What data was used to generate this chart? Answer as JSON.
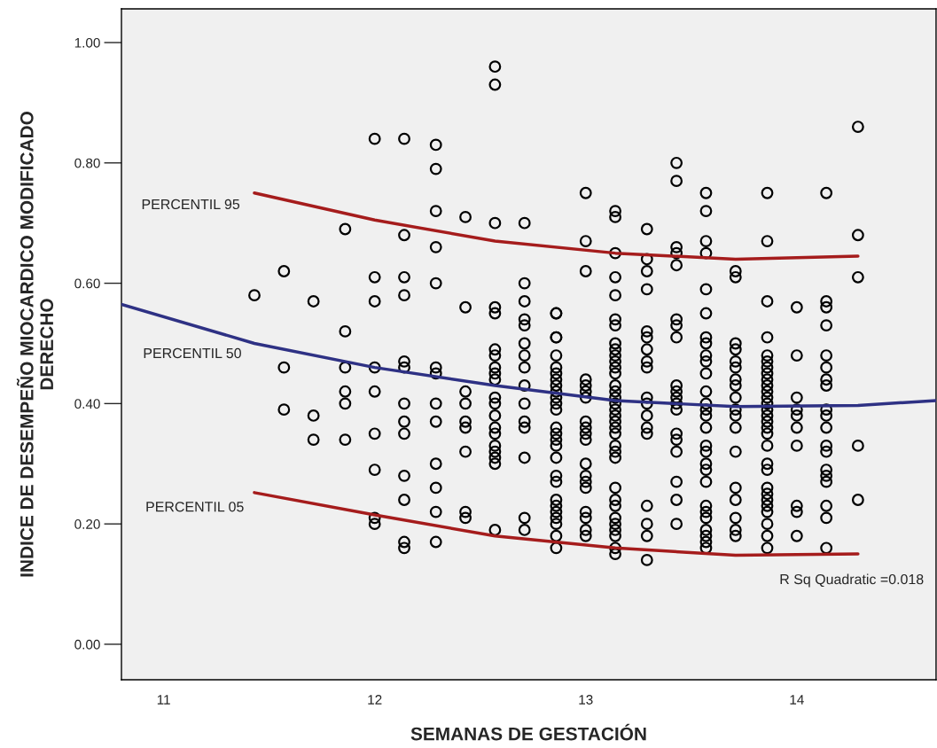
{
  "chart_data": {
    "type": "scatter",
    "xlabel": "SEMANAS DE GESTACIÓN",
    "ylabel": "INDICE DE DESEMPEÑO MIOCARDICO MODIFICADO\nDERECHO",
    "xlim": [
      10.8,
      14.66
    ],
    "xticks": [
      11,
      12,
      13,
      14
    ],
    "ylim": [
      -0.059,
      1.056
    ],
    "yticks": [
      {
        "value": 0,
        "label": "0.00"
      },
      {
        "value": 0.2,
        "label": "0.20"
      },
      {
        "value": 0.4,
        "label": "0.40"
      },
      {
        "value": 0.6,
        "label": "0.60"
      },
      {
        "value": 0.8,
        "label": "0.80"
      },
      {
        "value": 1.0,
        "label": "1.00"
      }
    ],
    "grid": false,
    "legend": false,
    "series": [
      {
        "color": "#000000",
        "marker": "circle",
        "x": [
          11.43,
          11.57,
          11.57,
          11.57,
          11.71,
          11.71,
          11.71,
          11.86,
          11.86,
          11.86,
          11.86,
          11.86,
          11.86,
          12.0,
          12.0,
          12.0,
          12.0,
          12.0,
          12.0,
          12.0,
          12.0,
          12.0,
          12.14,
          12.14,
          12.14,
          12.14,
          12.14,
          12.14,
          12.14,
          12.14,
          12.14,
          12.14,
          12.14,
          12.14,
          12.14,
          12.29,
          12.29,
          12.29,
          12.29,
          12.29,
          12.29,
          12.29,
          12.29,
          12.29,
          12.29,
          12.29,
          12.29,
          12.29,
          12.43,
          12.43,
          12.43,
          12.43,
          12.43,
          12.43,
          12.43,
          12.43,
          12.43,
          12.57,
          12.57,
          12.57,
          12.57,
          12.57,
          12.57,
          12.57,
          12.57,
          12.57,
          12.57,
          12.57,
          12.57,
          12.57,
          12.57,
          12.57,
          12.57,
          12.57,
          12.57,
          12.57,
          12.57,
          12.71,
          12.71,
          12.71,
          12.71,
          12.71,
          12.71,
          12.71,
          12.71,
          12.71,
          12.71,
          12.71,
          12.71,
          12.71,
          12.71,
          12.71,
          12.86,
          12.86,
          12.86,
          12.86,
          12.86,
          12.86,
          12.86,
          12.86,
          12.86,
          12.86,
          12.86,
          12.86,
          12.86,
          12.86,
          12.86,
          12.86,
          12.86,
          12.86,
          12.86,
          12.86,
          12.86,
          12.86,
          12.86,
          12.86,
          12.86,
          12.86,
          12.86,
          13.0,
          13.0,
          13.0,
          13.0,
          13.0,
          13.0,
          13.0,
          13.0,
          13.0,
          13.0,
          13.0,
          13.0,
          13.0,
          13.0,
          13.0,
          13.0,
          13.0,
          13.0,
          13.0,
          13.14,
          13.14,
          13.14,
          13.14,
          13.14,
          13.14,
          13.14,
          13.14,
          13.14,
          13.14,
          13.14,
          13.14,
          13.14,
          13.14,
          13.14,
          13.14,
          13.14,
          13.14,
          13.14,
          13.14,
          13.14,
          13.14,
          13.14,
          13.14,
          13.14,
          13.14,
          13.14,
          13.14,
          13.14,
          13.14,
          13.14,
          13.14,
          13.14,
          13.14,
          13.29,
          13.29,
          13.29,
          13.29,
          13.29,
          13.29,
          13.29,
          13.29,
          13.29,
          13.29,
          13.29,
          13.29,
          13.29,
          13.29,
          13.29,
          13.29,
          13.29,
          13.29,
          13.43,
          13.43,
          13.43,
          13.43,
          13.43,
          13.43,
          13.43,
          13.43,
          13.43,
          13.43,
          13.43,
          13.43,
          13.43,
          13.43,
          13.43,
          13.43,
          13.43,
          13.43,
          13.43,
          13.57,
          13.57,
          13.57,
          13.57,
          13.57,
          13.57,
          13.57,
          13.57,
          13.57,
          13.57,
          13.57,
          13.57,
          13.57,
          13.57,
          13.57,
          13.57,
          13.57,
          13.57,
          13.57,
          13.57,
          13.57,
          13.57,
          13.57,
          13.57,
          13.57,
          13.57,
          13.57,
          13.57,
          13.71,
          13.71,
          13.71,
          13.71,
          13.71,
          13.71,
          13.71,
          13.71,
          13.71,
          13.71,
          13.71,
          13.71,
          13.71,
          13.71,
          13.71,
          13.71,
          13.71,
          13.71,
          13.86,
          13.86,
          13.86,
          13.86,
          13.86,
          13.86,
          13.86,
          13.86,
          13.86,
          13.86,
          13.86,
          13.86,
          13.86,
          13.86,
          13.86,
          13.86,
          13.86,
          13.86,
          13.86,
          13.86,
          13.86,
          13.86,
          13.86,
          13.86,
          13.86,
          13.86,
          13.86,
          13.86,
          13.86,
          14.0,
          14.0,
          14.0,
          14.0,
          14.0,
          14.0,
          14.0,
          14.0,
          14.0,
          14.0,
          14.14,
          14.14,
          14.14,
          14.14,
          14.14,
          14.14,
          14.14,
          14.14,
          14.14,
          14.14,
          14.14,
          14.14,
          14.14,
          14.14,
          14.14,
          14.14,
          14.14,
          14.14,
          14.14,
          14.29,
          14.29,
          14.29,
          14.29,
          14.29
        ],
        "values": [
          0.58,
          0.62,
          0.46,
          0.39,
          0.57,
          0.38,
          0.34,
          0.69,
          0.52,
          0.46,
          0.42,
          0.4,
          0.34,
          0.84,
          0.61,
          0.57,
          0.46,
          0.42,
          0.35,
          0.29,
          0.21,
          0.2,
          0.84,
          0.68,
          0.61,
          0.58,
          0.47,
          0.46,
          0.4,
          0.37,
          0.35,
          0.28,
          0.24,
          0.17,
          0.16,
          0.83,
          0.79,
          0.72,
          0.66,
          0.6,
          0.46,
          0.45,
          0.4,
          0.37,
          0.3,
          0.26,
          0.22,
          0.17,
          0.71,
          0.56,
          0.42,
          0.4,
          0.37,
          0.36,
          0.32,
          0.22,
          0.21,
          0.96,
          0.93,
          0.7,
          0.56,
          0.55,
          0.49,
          0.48,
          0.46,
          0.45,
          0.44,
          0.41,
          0.4,
          0.38,
          0.36,
          0.35,
          0.33,
          0.32,
          0.31,
          0.3,
          0.19,
          0.7,
          0.6,
          0.57,
          0.54,
          0.53,
          0.5,
          0.48,
          0.46,
          0.43,
          0.4,
          0.37,
          0.36,
          0.31,
          0.21,
          0.19,
          0.55,
          0.55,
          0.51,
          0.51,
          0.48,
          0.46,
          0.45,
          0.44,
          0.43,
          0.42,
          0.41,
          0.4,
          0.39,
          0.36,
          0.35,
          0.34,
          0.33,
          0.31,
          0.28,
          0.27,
          0.24,
          0.23,
          0.22,
          0.21,
          0.2,
          0.18,
          0.16,
          0.75,
          0.67,
          0.62,
          0.44,
          0.43,
          0.42,
          0.41,
          0.37,
          0.36,
          0.35,
          0.34,
          0.3,
          0.28,
          0.27,
          0.26,
          0.22,
          0.21,
          0.19,
          0.18,
          0.72,
          0.71,
          0.65,
          0.61,
          0.58,
          0.54,
          0.53,
          0.5,
          0.49,
          0.48,
          0.47,
          0.46,
          0.45,
          0.43,
          0.42,
          0.41,
          0.4,
          0.39,
          0.38,
          0.37,
          0.36,
          0.35,
          0.33,
          0.32,
          0.31,
          0.26,
          0.24,
          0.23,
          0.21,
          0.2,
          0.19,
          0.18,
          0.16,
          0.15,
          0.69,
          0.64,
          0.62,
          0.59,
          0.52,
          0.51,
          0.49,
          0.47,
          0.46,
          0.41,
          0.4,
          0.38,
          0.36,
          0.35,
          0.23,
          0.2,
          0.18,
          0.14,
          0.8,
          0.77,
          0.66,
          0.65,
          0.63,
          0.54,
          0.53,
          0.51,
          0.43,
          0.42,
          0.41,
          0.4,
          0.39,
          0.35,
          0.34,
          0.32,
          0.27,
          0.24,
          0.2,
          0.75,
          0.72,
          0.67,
          0.65,
          0.59,
          0.55,
          0.51,
          0.5,
          0.48,
          0.47,
          0.45,
          0.42,
          0.4,
          0.39,
          0.38,
          0.36,
          0.33,
          0.32,
          0.3,
          0.29,
          0.27,
          0.23,
          0.22,
          0.21,
          0.19,
          0.18,
          0.17,
          0.16,
          0.62,
          0.61,
          0.5,
          0.49,
          0.47,
          0.46,
          0.44,
          0.43,
          0.41,
          0.39,
          0.38,
          0.36,
          0.32,
          0.26,
          0.24,
          0.21,
          0.19,
          0.18,
          0.75,
          0.67,
          0.57,
          0.51,
          0.48,
          0.47,
          0.46,
          0.45,
          0.44,
          0.43,
          0.42,
          0.41,
          0.4,
          0.39,
          0.38,
          0.37,
          0.36,
          0.35,
          0.33,
          0.3,
          0.29,
          0.26,
          0.25,
          0.24,
          0.23,
          0.22,
          0.2,
          0.18,
          0.16,
          0.56,
          0.48,
          0.41,
          0.39,
          0.38,
          0.36,
          0.33,
          0.23,
          0.22,
          0.18,
          0.75,
          0.57,
          0.56,
          0.53,
          0.48,
          0.46,
          0.44,
          0.43,
          0.39,
          0.38,
          0.36,
          0.33,
          0.32,
          0.29,
          0.28,
          0.27,
          0.23,
          0.21,
          0.16,
          0.86,
          0.68,
          0.61,
          0.33,
          0.24
        ]
      },
      {
        "type": "line",
        "marker": "none",
        "color": "#a51c1c",
        "x": [
          11.43,
          12.0,
          12.57,
          13.14,
          13.71,
          14.29
        ],
        "values": [
          0.75,
          0.705,
          0.67,
          0.65,
          0.64,
          0.645
        ]
      },
      {
        "type": "line",
        "marker": "none",
        "color": "#2e3184",
        "x": [
          10.8,
          11.43,
          12.0,
          12.57,
          13.14,
          13.71,
          14.29,
          14.66
        ],
        "values": [
          0.565,
          0.5,
          0.46,
          0.43,
          0.405,
          0.395,
          0.397,
          0.405
        ]
      },
      {
        "type": "line",
        "marker": "none",
        "color": "#a51c1c",
        "x": [
          11.43,
          12.0,
          12.57,
          13.14,
          13.71,
          14.29
        ],
        "values": [
          0.252,
          0.215,
          0.18,
          0.16,
          0.148,
          0.15
        ]
      }
    ],
    "annotations": [
      "PERCENTIL 95",
      "PERCENTIL 50",
      "PERCENTIL 05",
      "R Sq Quadratic =0.018"
    ]
  }
}
